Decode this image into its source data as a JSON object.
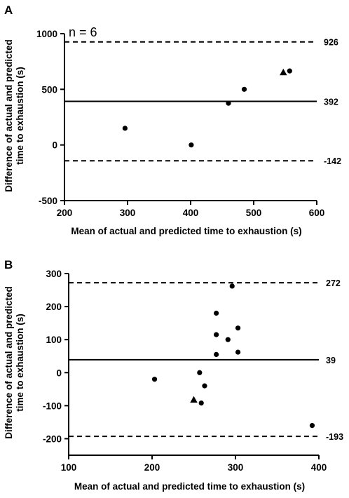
{
  "chart_data": [
    {
      "panel": "A",
      "type": "scatter",
      "annotation": "n = 6",
      "xlabel": "Mean of actual and predicted time to exhaustion (s)",
      "ylabel": [
        "Difference of actual and predicted",
        "time to exhaustion (s)"
      ],
      "xlim": [
        200,
        600
      ],
      "ylim": [
        -500,
        1000
      ],
      "xticks": [
        200,
        300,
        400,
        500,
        600
      ],
      "yticks": [
        -500,
        0,
        500,
        1000
      ],
      "bias": 392,
      "upper_loa": 926,
      "lower_loa": -142,
      "bias_label": "392",
      "upper_label": "926",
      "lower_label": "-142",
      "points": [
        {
          "x": 296,
          "y": 150,
          "marker": "circle"
        },
        {
          "x": 401,
          "y": 0,
          "marker": "circle"
        },
        {
          "x": 460,
          "y": 375,
          "marker": "circle"
        },
        {
          "x": 485,
          "y": 500,
          "marker": "circle"
        },
        {
          "x": 547,
          "y": 653,
          "marker": "triangle"
        },
        {
          "x": 557,
          "y": 665,
          "marker": "circle"
        }
      ]
    },
    {
      "panel": "B",
      "type": "scatter",
      "annotation": "",
      "xlabel": "Mean of actual and predicted time to exhaustion (s)",
      "ylabel": [
        "Difference of actual and predicted",
        "time to exhaustion (s)"
      ],
      "xlim": [
        100,
        400
      ],
      "ylim": [
        -250,
        300
      ],
      "xticks": [
        100,
        200,
        300,
        400
      ],
      "yticks": [
        -200,
        -100,
        0,
        100,
        200,
        300
      ],
      "bias": 39,
      "upper_loa": 272,
      "lower_loa": -193,
      "bias_label": "39",
      "upper_label": "272",
      "lower_label": "-193",
      "points": [
        {
          "x": 203,
          "y": -20,
          "marker": "circle"
        },
        {
          "x": 250,
          "y": -82,
          "marker": "triangle"
        },
        {
          "x": 257,
          "y": 0,
          "marker": "circle"
        },
        {
          "x": 259,
          "y": -92,
          "marker": "circle"
        },
        {
          "x": 263,
          "y": -40,
          "marker": "circle"
        },
        {
          "x": 277,
          "y": 180,
          "marker": "circle"
        },
        {
          "x": 277,
          "y": 115,
          "marker": "circle"
        },
        {
          "x": 277,
          "y": 55,
          "marker": "circle"
        },
        {
          "x": 291,
          "y": 100,
          "marker": "circle"
        },
        {
          "x": 296,
          "y": 262,
          "marker": "circle"
        },
        {
          "x": 303,
          "y": 135,
          "marker": "circle"
        },
        {
          "x": 303,
          "y": 62,
          "marker": "circle"
        },
        {
          "x": 392,
          "y": -160,
          "marker": "circle"
        }
      ]
    }
  ]
}
